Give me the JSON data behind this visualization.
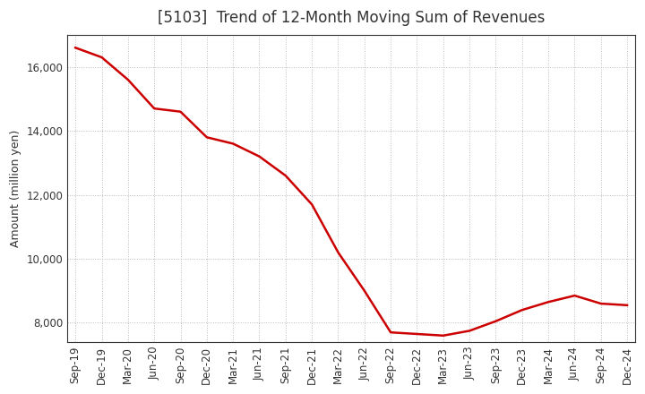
{
  "title": "[5103]  Trend of 12-Month Moving Sum of Revenues",
  "ylabel": "Amount (million yen)",
  "line_color": "#cc0000",
  "background_color": "#ffffff",
  "grid_color": "#bbbbbb",
  "title_color": "#333333",
  "x_labels": [
    "Sep-19",
    "Dec-19",
    "Mar-20",
    "Jun-20",
    "Sep-20",
    "Dec-20",
    "Mar-21",
    "Jun-21",
    "Sep-21",
    "Dec-21",
    "Mar-22",
    "Jun-22",
    "Sep-22",
    "Dec-22",
    "Mar-23",
    "Jun-23",
    "Sep-23",
    "Dec-23",
    "Mar-24",
    "Jun-24",
    "Sep-24",
    "Dec-24"
  ],
  "values": [
    16600,
    16300,
    15600,
    14700,
    14600,
    13800,
    13600,
    13200,
    12600,
    11700,
    10200,
    9000,
    7700,
    7650,
    7600,
    7750,
    8050,
    8400,
    8650,
    8850,
    8600,
    8550
  ],
  "ylim": [
    7400,
    17000
  ],
  "yticks": [
    8000,
    10000,
    12000,
    14000,
    16000
  ],
  "title_fontsize": 12,
  "label_fontsize": 9,
  "tick_fontsize": 8.5
}
